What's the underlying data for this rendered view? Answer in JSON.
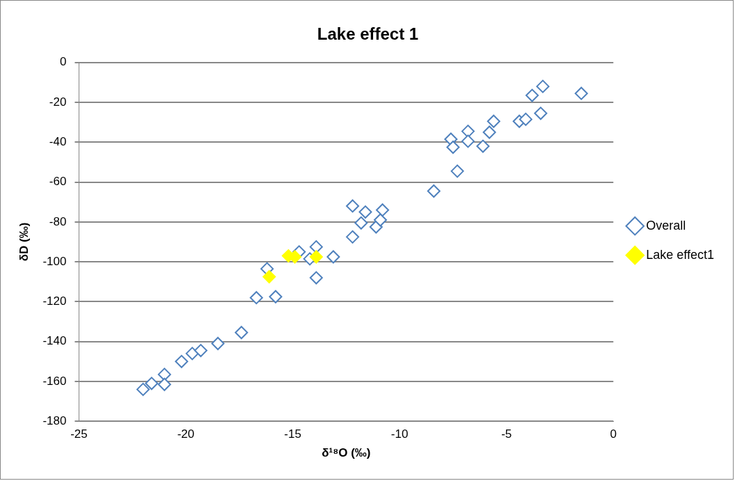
{
  "chart_data": {
    "type": "scatter",
    "title": "Lake effect 1",
    "xlabel": "δ¹⁸O (‰)",
    "ylabel": "δD (‰)",
    "xlim": [
      -25,
      0
    ],
    "xticks": [
      -25,
      -20,
      -15,
      -10,
      -5,
      0
    ],
    "ylim": [
      -180,
      0
    ],
    "yticks": [
      -180,
      -160,
      -140,
      -120,
      -100,
      -80,
      -60,
      -40,
      -20,
      0
    ],
    "grid": "y",
    "legend": "right",
    "marker": "diamond",
    "series": [
      {
        "name": "Overall",
        "color": "#4f81bd",
        "x": [
          -22.0,
          -21.6,
          -21.0,
          -21.0,
          -20.2,
          -19.7,
          -19.3,
          -18.5,
          -17.4,
          -16.7,
          -15.8,
          -16.2,
          -16.1,
          -14.7,
          -14.2,
          -13.9,
          -13.9,
          -13.1,
          -12.2,
          -12.2,
          -11.8,
          -11.6,
          -11.1,
          -10.9,
          -10.8,
          -8.4,
          -7.6,
          -7.5,
          -7.3,
          -6.8,
          -6.8,
          -6.1,
          -5.8,
          -5.6,
          -4.4,
          -4.1,
          -3.4,
          -3.8,
          -3.3,
          -1.5
        ],
        "values": [
          -164,
          -161,
          -156.5,
          -161.5,
          -150,
          -146,
          -144.5,
          -141,
          -135.5,
          -118,
          -117.5,
          -103.5,
          null,
          -95,
          -98.5,
          -92.5,
          -108,
          -97.5,
          -72,
          -87.5,
          -80.5,
          -75,
          -82.5,
          -79,
          -74,
          -64.5,
          -38.5,
          -42.5,
          -54.5,
          -34.5,
          -39.5,
          -42,
          -35,
          -29.5,
          -29.5,
          -28.5,
          -25.5,
          -16.5,
          -12,
          -15.5
        ]
      },
      {
        "name": "Lake effect1",
        "color": "#ffff00",
        "x": [
          -16.1,
          -15.2,
          -14.9,
          -13.9
        ],
        "values": [
          -107.5,
          -97,
          -97.5,
          -97.5
        ]
      }
    ]
  }
}
